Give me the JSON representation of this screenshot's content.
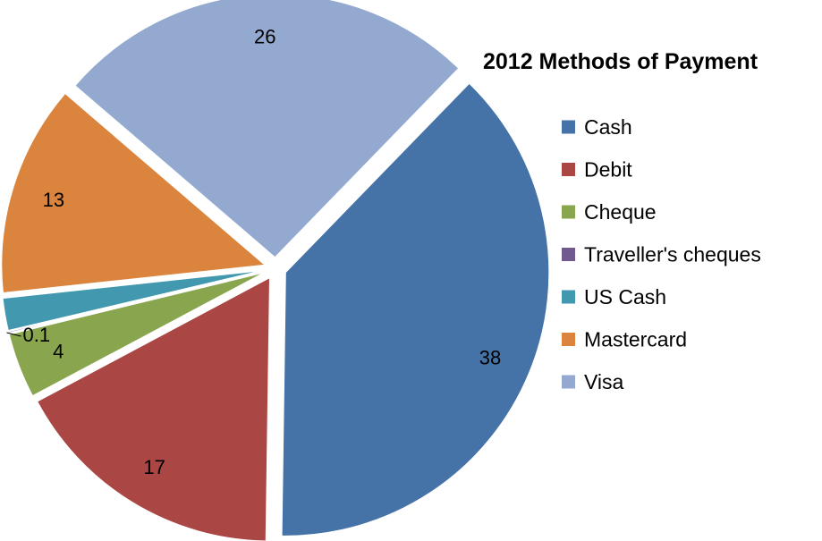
{
  "chart_data": {
    "type": "pie",
    "title": "2012 Methods of Payment",
    "legend_position": "right",
    "exploded": true,
    "slices": [
      {
        "label": "Cash",
        "value": 38,
        "display": "38",
        "color": "#4572A7"
      },
      {
        "label": "Debit",
        "value": 17,
        "display": "17",
        "color": "#AA4643"
      },
      {
        "label": "Cheque",
        "value": 4,
        "display": "4",
        "color": "#89A54E"
      },
      {
        "label": "Traveller's cheques",
        "value": 0.1,
        "display": "0.1",
        "color": "#71588F"
      },
      {
        "label": "US Cash",
        "value": 2,
        "display": "2",
        "color": "#4198AF"
      },
      {
        "label": "Mastercard",
        "value": 13,
        "display": "13",
        "color": "#DB843D"
      },
      {
        "label": "Visa",
        "value": 26,
        "display": "26",
        "color": "#93A9CF"
      }
    ]
  }
}
